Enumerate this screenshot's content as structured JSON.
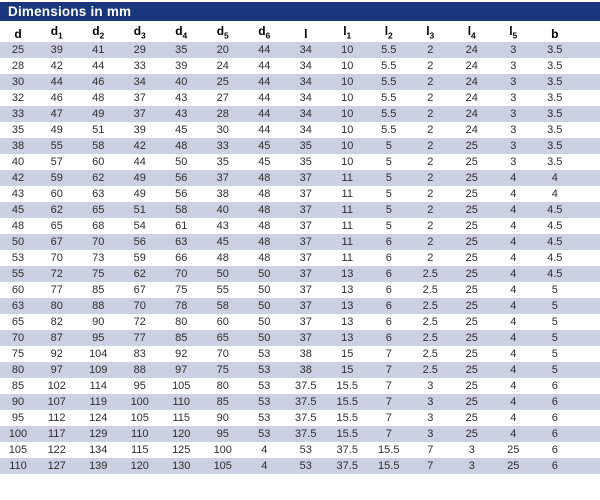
{
  "title_bar": {
    "title": "Dimensions in mm"
  },
  "colors": {
    "title_bar_bg": "#17367C",
    "title_text": "#FFFFFF",
    "stripe_row_bg": "#CBD0E2",
    "plain_row_bg": "#FFFFFF",
    "header_text": "#000000",
    "cell_text": "#2E2E2E"
  },
  "table": {
    "columns": [
      {
        "base": "d",
        "sub": ""
      },
      {
        "base": "d",
        "sub": "1"
      },
      {
        "base": "d",
        "sub": "2"
      },
      {
        "base": "d",
        "sub": "3"
      },
      {
        "base": "d",
        "sub": "4"
      },
      {
        "base": "d",
        "sub": "5"
      },
      {
        "base": "d",
        "sub": "6"
      },
      {
        "base": "l",
        "sub": ""
      },
      {
        "base": "l",
        "sub": "1"
      },
      {
        "base": "l",
        "sub": "2"
      },
      {
        "base": "l",
        "sub": "3"
      },
      {
        "base": "l",
        "sub": "4"
      },
      {
        "base": "l",
        "sub": "5"
      },
      {
        "base": "b",
        "sub": ""
      }
    ],
    "rows": [
      [
        "25",
        "39",
        "41",
        "29",
        "35",
        "20",
        "44",
        "34",
        "10",
        "5.5",
        "2",
        "24",
        "3",
        "3.5"
      ],
      [
        "28",
        "42",
        "44",
        "33",
        "39",
        "24",
        "44",
        "34",
        "10",
        "5.5",
        "2",
        "24",
        "3",
        "3.5"
      ],
      [
        "30",
        "44",
        "46",
        "34",
        "40",
        "25",
        "44",
        "34",
        "10",
        "5.5",
        "2",
        "24",
        "3",
        "3.5"
      ],
      [
        "32",
        "46",
        "48",
        "37",
        "43",
        "27",
        "44",
        "34",
        "10",
        "5.5",
        "2",
        "24",
        "3",
        "3.5"
      ],
      [
        "33",
        "47",
        "49",
        "37",
        "43",
        "28",
        "44",
        "34",
        "10",
        "5.5",
        "2",
        "24",
        "3",
        "3.5"
      ],
      [
        "35",
        "49",
        "51",
        "39",
        "45",
        "30",
        "44",
        "34",
        "10",
        "5.5",
        "2",
        "24",
        "3",
        "3.5"
      ],
      [
        "38",
        "55",
        "58",
        "42",
        "48",
        "33",
        "45",
        "35",
        "10",
        "5",
        "2",
        "25",
        "3",
        "3.5"
      ],
      [
        "40",
        "57",
        "60",
        "44",
        "50",
        "35",
        "45",
        "35",
        "10",
        "5",
        "2",
        "25",
        "3",
        "3.5"
      ],
      [
        "42",
        "59",
        "62",
        "49",
        "56",
        "37",
        "48",
        "37",
        "11",
        "5",
        "2",
        "25",
        "4",
        "4"
      ],
      [
        "43",
        "60",
        "63",
        "49",
        "56",
        "38",
        "48",
        "37",
        "11",
        "5",
        "2",
        "25",
        "4",
        "4"
      ],
      [
        "45",
        "62",
        "65",
        "51",
        "58",
        "40",
        "48",
        "37",
        "11",
        "5",
        "2",
        "25",
        "4",
        "4.5"
      ],
      [
        "48",
        "65",
        "68",
        "54",
        "61",
        "43",
        "48",
        "37",
        "11",
        "5",
        "2",
        "25",
        "4",
        "4.5"
      ],
      [
        "50",
        "67",
        "70",
        "56",
        "63",
        "45",
        "48",
        "37",
        "11",
        "6",
        "2",
        "25",
        "4",
        "4.5"
      ],
      [
        "53",
        "70",
        "73",
        "59",
        "66",
        "48",
        "48",
        "37",
        "11",
        "6",
        "2",
        "25",
        "4",
        "4.5"
      ],
      [
        "55",
        "72",
        "75",
        "62",
        "70",
        "50",
        "50",
        "37",
        "13",
        "6",
        "2.5",
        "25",
        "4",
        "4.5"
      ],
      [
        "60",
        "77",
        "85",
        "67",
        "75",
        "55",
        "50",
        "37",
        "13",
        "6",
        "2.5",
        "25",
        "4",
        "5"
      ],
      [
        "63",
        "80",
        "88",
        "70",
        "78",
        "58",
        "50",
        "37",
        "13",
        "6",
        "2.5",
        "25",
        "4",
        "5"
      ],
      [
        "65",
        "82",
        "90",
        "72",
        "80",
        "60",
        "50",
        "37",
        "13",
        "6",
        "2.5",
        "25",
        "4",
        "5"
      ],
      [
        "70",
        "87",
        "95",
        "77",
        "85",
        "65",
        "50",
        "37",
        "13",
        "6",
        "2.5",
        "25",
        "4",
        "5"
      ],
      [
        "75",
        "92",
        "104",
        "83",
        "92",
        "70",
        "53",
        "38",
        "15",
        "7",
        "2.5",
        "25",
        "4",
        "5"
      ],
      [
        "80",
        "97",
        "109",
        "88",
        "97",
        "75",
        "53",
        "38",
        "15",
        "7",
        "2.5",
        "25",
        "4",
        "5"
      ],
      [
        "85",
        "102",
        "114",
        "95",
        "105",
        "80",
        "53",
        "37.5",
        "15.5",
        "7",
        "3",
        "25",
        "4",
        "6"
      ],
      [
        "90",
        "107",
        "119",
        "100",
        "110",
        "85",
        "53",
        "37.5",
        "15.5",
        "7",
        "3",
        "25",
        "4",
        "6"
      ],
      [
        "95",
        "112",
        "124",
        "105",
        "115",
        "90",
        "53",
        "37.5",
        "15.5",
        "7",
        "3",
        "25",
        "4",
        "6"
      ],
      [
        "100",
        "117",
        "129",
        "110",
        "120",
        "95",
        "53",
        "37.5",
        "15.5",
        "7",
        "3",
        "25",
        "4",
        "6"
      ],
      [
        "105",
        "122",
        "134",
        "115",
        "125",
        "100",
        "4",
        "53",
        "37.5",
        "15.5",
        "7",
        "3",
        "25",
        "6"
      ],
      [
        "110",
        "127",
        "139",
        "120",
        "130",
        "105",
        "4",
        "53",
        "37.5",
        "15.5",
        "7",
        "3",
        "25",
        "6"
      ]
    ]
  }
}
